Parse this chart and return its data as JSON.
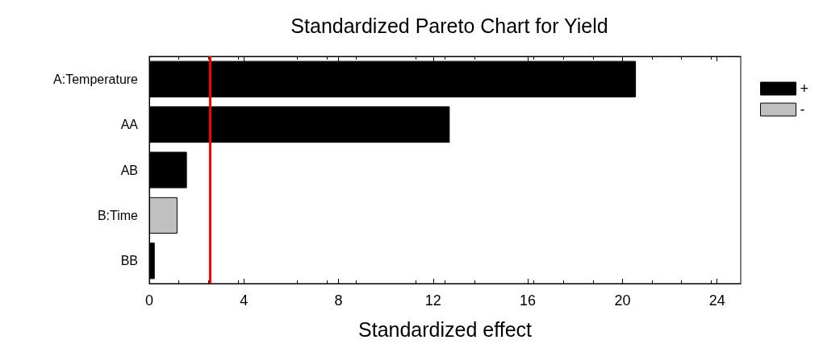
{
  "chart_data": {
    "type": "bar",
    "orientation": "horizontal",
    "title": "Standardized Pareto Chart for Yield",
    "xlabel": "Standardized effect",
    "categories": [
      "A:Temperature",
      "AA",
      "AB",
      "B:Time",
      "BB"
    ],
    "series": [
      {
        "name": "+",
        "color": "#000000",
        "values": [
          20.57,
          12.7,
          1.59,
          null,
          0.23
        ]
      },
      {
        "name": "-",
        "color": "#c0c0c0",
        "values": [
          null,
          null,
          null,
          1.19,
          null
        ]
      }
    ],
    "xlim": [
      0,
      25
    ],
    "xticks": [
      0,
      4,
      8,
      12,
      16,
      20,
      24
    ],
    "ref_lines": [
      {
        "axis": "x",
        "value": 2.58,
        "color": "#ff0000"
      }
    ],
    "grid": false,
    "legend": "top right"
  }
}
